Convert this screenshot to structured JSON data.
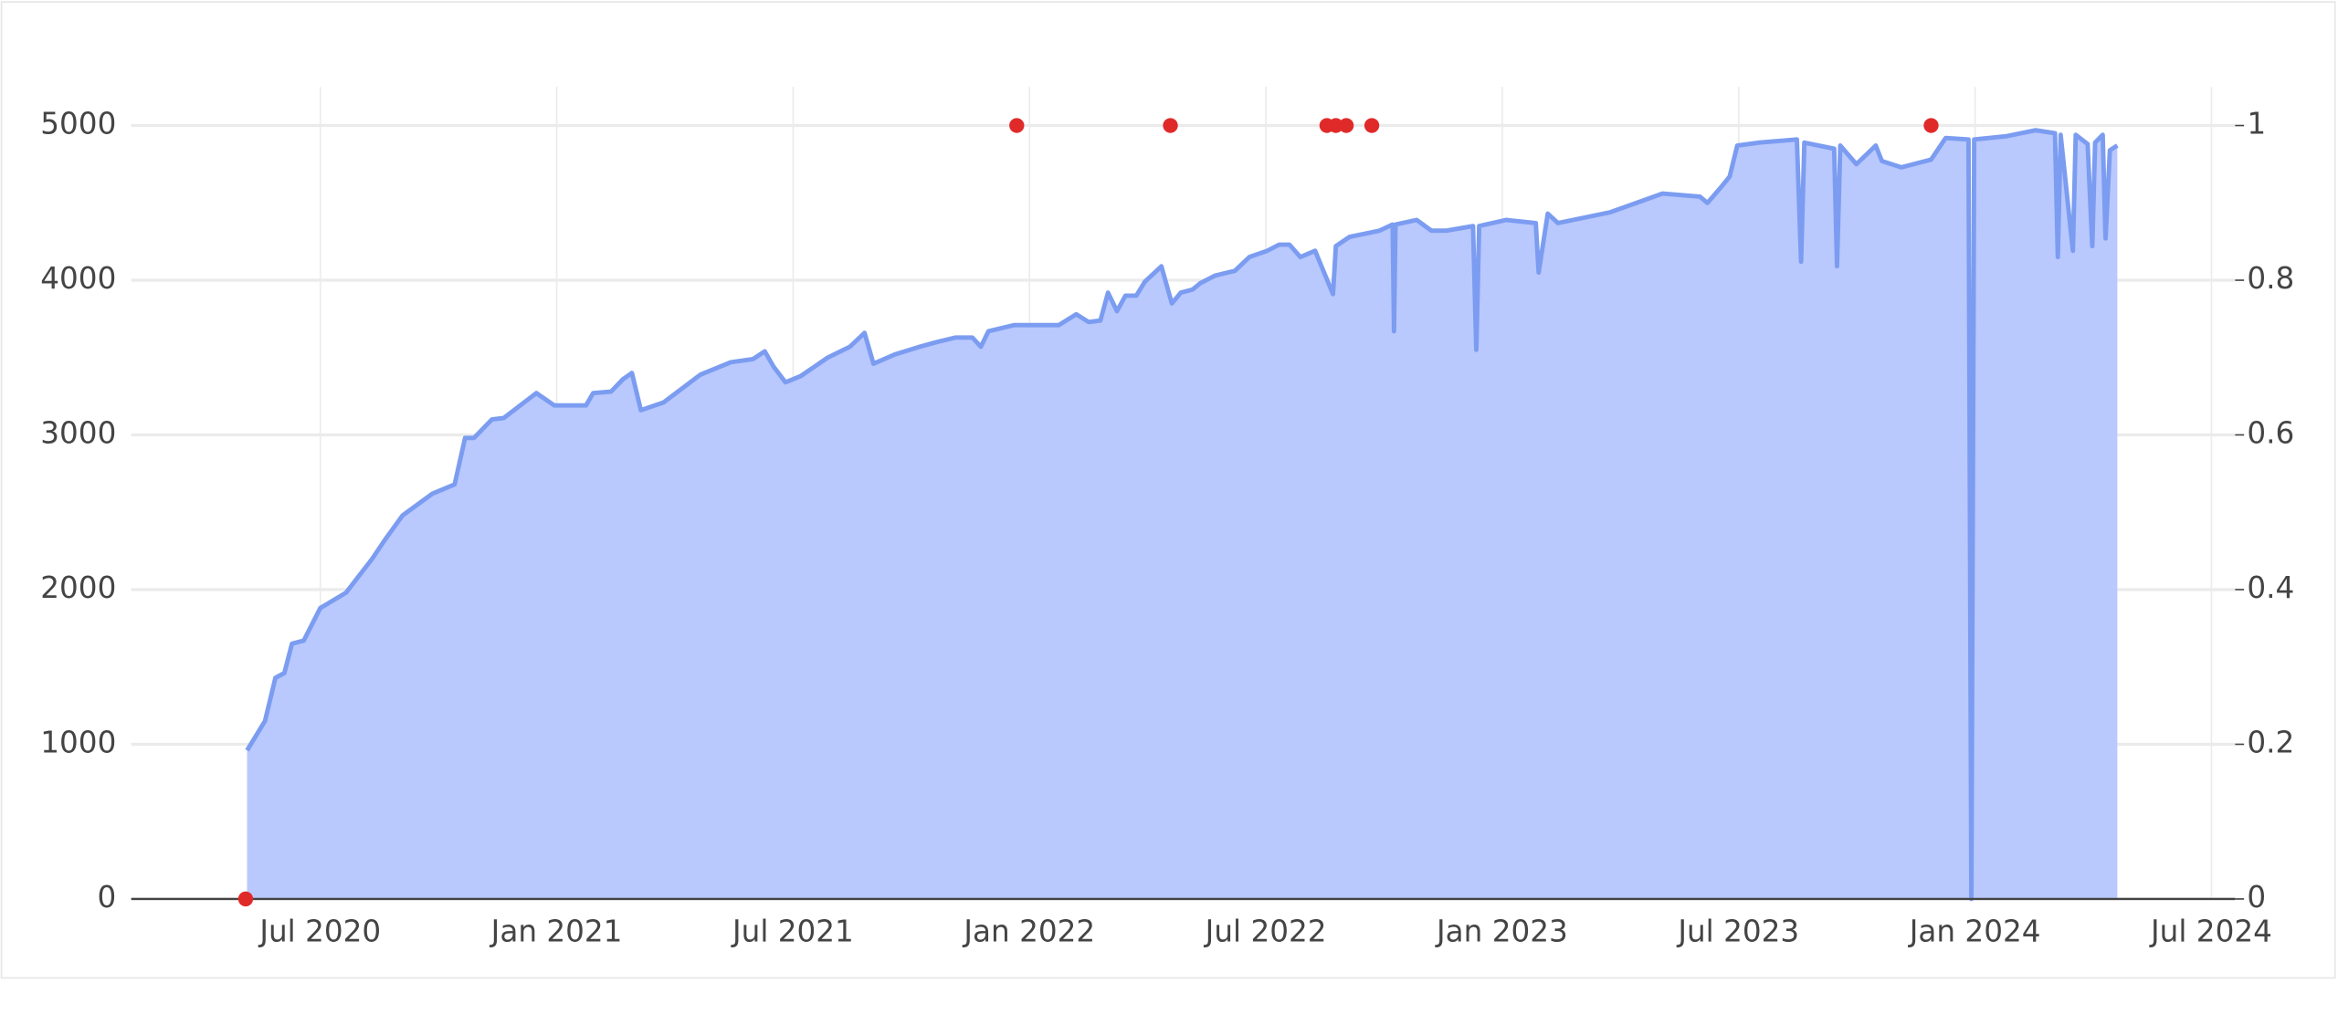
{
  "chart_data": {
    "type": "area",
    "xlim": [
      2020.1,
      2024.55
    ],
    "xticks": [
      {
        "value": 2020.5,
        "label": "Jul 2020"
      },
      {
        "value": 2021,
        "label": "Jan 2021"
      },
      {
        "value": 2021.5,
        "label": "Jul 2021"
      },
      {
        "value": 2022,
        "label": "Jan 2022"
      },
      {
        "value": 2022.5,
        "label": "Jul 2022"
      },
      {
        "value": 2023,
        "label": "Jan 2023"
      },
      {
        "value": 2023.5,
        "label": "Jul 2023"
      },
      {
        "value": 2024,
        "label": "Jan 2024"
      },
      {
        "value": 2024.5,
        "label": "Jul 2024"
      }
    ],
    "ylim": [
      0,
      5250
    ],
    "yticks": [
      0,
      1000,
      2000,
      3000,
      4000,
      5000
    ],
    "y2lim": [
      0,
      1.05
    ],
    "y2ticks": [
      0,
      0.2,
      0.4,
      0.6,
      0.8,
      1
    ],
    "grid": true,
    "series": [
      {
        "type": "area",
        "color": "#7b9cf0",
        "fill": "#b9c8fd",
        "x": [
          2020.345,
          2020.383,
          2020.405,
          2020.424,
          2020.44,
          2020.465,
          2020.5,
          2020.554,
          2020.61,
          2020.636,
          2020.674,
          2020.737,
          2020.784,
          2020.806,
          2020.825,
          2020.863,
          2020.888,
          2020.957,
          2020.995,
          2021.062,
          2021.077,
          2021.115,
          2021.14,
          2021.159,
          2021.178,
          2021.226,
          2021.304,
          2021.368,
          2021.415,
          2021.44,
          2021.459,
          2021.484,
          2021.516,
          2021.573,
          2021.62,
          2021.651,
          2021.67,
          2021.715,
          2021.768,
          2021.803,
          2021.844,
          2021.879,
          2021.897,
          2021.913,
          2021.967,
          2022.062,
          2022.099,
          2022.125,
          2022.15,
          2022.166,
          2022.185,
          2022.203,
          2022.226,
          2022.244,
          2022.279,
          2022.301,
          2022.32,
          2022.345,
          2022.361,
          2022.393,
          2022.434,
          2022.465,
          2022.503,
          2022.528,
          2022.55,
          2022.573,
          2022.604,
          2022.642,
          2022.648,
          2022.677,
          2022.74,
          2022.768,
          2022.771,
          2022.774,
          2022.819,
          2022.85,
          2022.882,
          2022.938,
          2022.945,
          2022.951,
          2023.008,
          2023.071,
          2023.077,
          2023.096,
          2023.118,
          2023.229,
          2023.339,
          2023.418,
          2023.434,
          2023.465,
          2023.481,
          2023.497,
          2023.544,
          2023.623,
          2023.632,
          2023.639,
          2023.702,
          2023.708,
          2023.715,
          2023.749,
          2023.79,
          2023.803,
          2023.844,
          2023.907,
          2023.938,
          2023.986,
          2023.992,
          2023.998,
          2024.065,
          2024.128,
          2024.169,
          2024.175,
          2024.181,
          2024.207,
          2024.213,
          2024.238,
          2024.248,
          2024.254,
          2024.27,
          2024.276,
          2024.285,
          2024.301
        ],
        "values": [
          960,
          1150,
          1430,
          1460,
          1650,
          1670,
          1880,
          1980,
          2200,
          2320,
          2480,
          2620,
          2680,
          2980,
          2980,
          3100,
          3110,
          3270,
          3190,
          3190,
          3270,
          3280,
          3360,
          3400,
          3160,
          3210,
          3390,
          3470,
          3490,
          3540,
          3440,
          3340,
          3380,
          3500,
          3570,
          3660,
          3460,
          3520,
          3570,
          3600,
          3630,
          3630,
          3570,
          3670,
          3710,
          3710,
          3780,
          3730,
          3740,
          3920,
          3800,
          3900,
          3900,
          3990,
          4090,
          3850,
          3920,
          3940,
          3980,
          4030,
          4060,
          4150,
          4190,
          4230,
          4230,
          4150,
          4190,
          3910,
          4220,
          4280,
          4320,
          4360,
          3670,
          4360,
          4390,
          4320,
          4320,
          4350,
          3550,
          4350,
          4390,
          4370,
          4050,
          4430,
          4370,
          4440,
          4560,
          4540,
          4500,
          4610,
          4670,
          4870,
          4890,
          4910,
          4120,
          4890,
          4850,
          4090,
          4870,
          4750,
          4870,
          4770,
          4730,
          4780,
          4920,
          4910,
          0,
          4910,
          4930,
          4970,
          4950,
          4150,
          4940,
          4190,
          4940,
          4880,
          4220,
          4890,
          4940,
          4270,
          4840,
          4870
        ]
      },
      {
        "type": "scatter",
        "color": "#e02a2a",
        "axis": "y2",
        "x": [
          2020.342,
          2021.973,
          2022.298,
          2022.629,
          2022.648,
          2022.67,
          2022.724,
          2023.907
        ],
        "values": [
          0,
          1,
          1,
          1,
          1,
          1,
          1,
          1
        ]
      }
    ]
  }
}
